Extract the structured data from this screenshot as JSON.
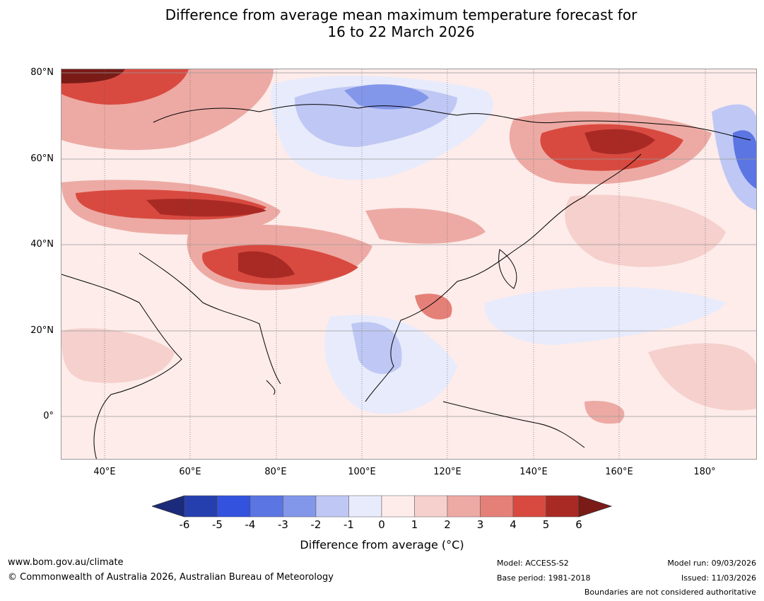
{
  "title": {
    "line1": "Difference from average mean maximum temperature forecast for",
    "line2": "16 to 22 March 2026"
  },
  "axes": {
    "lat_labels": [
      "80°N",
      "60°N",
      "40°N",
      "20°N",
      "0°"
    ],
    "lon_labels": [
      "40°E",
      "60°E",
      "80°E",
      "100°E",
      "120°E",
      "140°E",
      "160°E",
      "180°"
    ]
  },
  "colorbar": {
    "ticks": [
      "-6",
      "-5",
      "-4",
      "-3",
      "-2",
      "-1",
      "0",
      "1",
      "2",
      "3",
      "4",
      "5",
      "6"
    ],
    "colors": [
      "#1b2a7a",
      "#263fae",
      "#3352dd",
      "#5b75e3",
      "#8397ea",
      "#bfc8f4",
      "#e8ebfb",
      "#fdecea",
      "#f5d0cc",
      "#edaaa4",
      "#e58078",
      "#d84a40",
      "#a92a25",
      "#7a1b17"
    ],
    "label": "Difference from average (°C)"
  },
  "footer": {
    "url": "www.bom.gov.au/climate",
    "copyright": "© Commonwealth of Australia 2026, Australian Bureau of Meteorology",
    "model": "Model: ACCESS-S2",
    "base_period": "Base period: 1981-2018",
    "model_run": "Model run: 09/03/2026",
    "issued": "Issued: 11/03/2026",
    "disclaimer": "Boundaries are not considered authoritative"
  }
}
